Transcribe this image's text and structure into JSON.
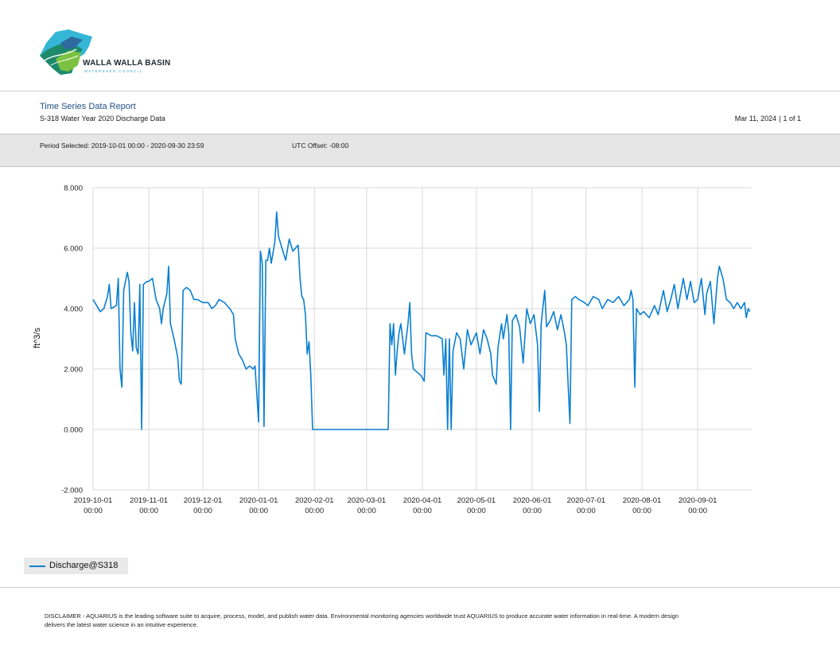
{
  "header": {
    "logo_text": "WALLA WALLA BASIN",
    "logo_subtext": "WATERSHED COUNCIL",
    "report_title": "Time Series Data Report",
    "report_subtitle": "S-318 Water Year 2020 Discharge Data",
    "report_date": "Mar 11, 2024",
    "page_info": "1 of 1"
  },
  "period": {
    "selected": "Period Selected: 2019-10-01 00:00 - 2020-09-30 23:59",
    "utc_offset": "UTC Offset: -08:00"
  },
  "legend": {
    "label": "Discharge@S318",
    "color": "#0a7fd1"
  },
  "disclaimer": "DISCLAIMER - AQUARIUS is the leading software suite to acquire, process, model, and publish water data. Environmental monitoring agencies worldwide trust AQUARIUS to produce accurate water information in real-time. A modern design delivers the latest water science in an intuitive experience.",
  "colors": {
    "series": "#0a7fd1",
    "grid": "#d9d9d9",
    "title": "#1f4f86"
  },
  "chart_data": {
    "type": "line",
    "title": "",
    "xlabel": "",
    "ylabel": "ft^3/s",
    "ylim": [
      -2,
      8
    ],
    "xlim": [
      "2019-10-01",
      "2020-09-30"
    ],
    "yticks": [
      "8.000",
      "6.000",
      "4.000",
      "2.000",
      "0.000",
      "-2.000"
    ],
    "xticks": [
      {
        "date": "2019-10-01",
        "label1": "2019-10-01",
        "label2": "00:00"
      },
      {
        "date": "2019-11-01",
        "label1": "2019-11-01",
        "label2": "00:00"
      },
      {
        "date": "2019-12-01",
        "label1": "2019-12-01",
        "label2": "00:00"
      },
      {
        "date": "2020-01-01",
        "label1": "2020-01-01",
        "label2": "00:00"
      },
      {
        "date": "2020-02-01",
        "label1": "2020-02-01",
        "label2": "00:00"
      },
      {
        "date": "2020-03-01",
        "label1": "2020-03-01",
        "label2": "00:00"
      },
      {
        "date": "2020-04-01",
        "label1": "2020-04-01",
        "label2": "00:00"
      },
      {
        "date": "2020-05-01",
        "label1": "2020-05-01",
        "label2": "00:00"
      },
      {
        "date": "2020-06-01",
        "label1": "2020-06-01",
        "label2": "00:00"
      },
      {
        "date": "2020-07-01",
        "label1": "2020-07-01",
        "label2": "00:00"
      },
      {
        "date": "2020-08-01",
        "label1": "2020-08-01",
        "label2": "00:00"
      },
      {
        "date": "2020-09-01",
        "label1": "2020-09-01",
        "label2": "00:00"
      }
    ],
    "grid": true,
    "legend_position": "bottom-left",
    "series": [
      {
        "name": "Discharge@S318",
        "color": "#0a7fd1",
        "points": [
          [
            "2019-10-01",
            4.3
          ],
          [
            "2019-10-03",
            4.1
          ],
          [
            "2019-10-05",
            3.9
          ],
          [
            "2019-10-07",
            4.0
          ],
          [
            "2019-10-09",
            4.4
          ],
          [
            "2019-10-10",
            4.8
          ],
          [
            "2019-10-11",
            4.0
          ],
          [
            "2019-10-14",
            4.1
          ],
          [
            "2019-10-15",
            5.0
          ],
          [
            "2019-10-16",
            2.0
          ],
          [
            "2019-10-17",
            1.4
          ],
          [
            "2019-10-18",
            4.6
          ],
          [
            "2019-10-20",
            5.2
          ],
          [
            "2019-10-21",
            4.9
          ],
          [
            "2019-10-22",
            3.2
          ],
          [
            "2019-10-23",
            2.6
          ],
          [
            "2019-10-24",
            4.2
          ],
          [
            "2019-10-25",
            2.7
          ],
          [
            "2019-10-26",
            2.5
          ],
          [
            "2019-10-27",
            4.8
          ],
          [
            "2019-10-28",
            0.0
          ],
          [
            "2019-10-29",
            4.8
          ],
          [
            "2019-10-31",
            4.9
          ],
          [
            "2019-11-01",
            4.9
          ],
          [
            "2019-11-03",
            5.0
          ],
          [
            "2019-11-05",
            4.3
          ],
          [
            "2019-11-07",
            4.0
          ],
          [
            "2019-11-08",
            3.5
          ],
          [
            "2019-11-09",
            4.0
          ],
          [
            "2019-11-11",
            4.5
          ],
          [
            "2019-11-12",
            5.4
          ],
          [
            "2019-11-13",
            3.5
          ],
          [
            "2019-11-15",
            3.0
          ],
          [
            "2019-11-17",
            2.4
          ],
          [
            "2019-11-18",
            1.6
          ],
          [
            "2019-11-19",
            1.5
          ],
          [
            "2019-11-20",
            4.6
          ],
          [
            "2019-11-22",
            4.7
          ],
          [
            "2019-11-24",
            4.6
          ],
          [
            "2019-11-26",
            4.3
          ],
          [
            "2019-11-28",
            4.3
          ],
          [
            "2019-12-01",
            4.2
          ],
          [
            "2019-12-04",
            4.2
          ],
          [
            "2019-12-06",
            4.0
          ],
          [
            "2019-12-08",
            4.1
          ],
          [
            "2019-12-10",
            4.3
          ],
          [
            "2019-12-13",
            4.2
          ],
          [
            "2019-12-16",
            4.0
          ],
          [
            "2019-12-18",
            3.8
          ],
          [
            "2019-12-19",
            3.0
          ],
          [
            "2019-12-21",
            2.5
          ],
          [
            "2019-12-23",
            2.3
          ],
          [
            "2019-12-25",
            2.0
          ],
          [
            "2019-12-27",
            2.1
          ],
          [
            "2019-12-29",
            2.0
          ],
          [
            "2019-12-30",
            2.1
          ],
          [
            "2020-01-01",
            0.25
          ],
          [
            "2020-01-02",
            5.9
          ],
          [
            "2020-01-03",
            5.5
          ],
          [
            "2020-01-04",
            0.1
          ],
          [
            "2020-01-05",
            5.6
          ],
          [
            "2020-01-06",
            5.6
          ],
          [
            "2020-01-07",
            6.0
          ],
          [
            "2020-01-08",
            5.5
          ],
          [
            "2020-01-10",
            6.2
          ],
          [
            "2020-01-11",
            7.2
          ],
          [
            "2020-01-12",
            6.4
          ],
          [
            "2020-01-14",
            6.0
          ],
          [
            "2020-01-16",
            5.6
          ],
          [
            "2020-01-18",
            6.3
          ],
          [
            "2020-01-20",
            5.9
          ],
          [
            "2020-01-23",
            6.1
          ],
          [
            "2020-01-24",
            5.0
          ],
          [
            "2020-01-25",
            4.4
          ],
          [
            "2020-01-26",
            4.3
          ],
          [
            "2020-01-27",
            3.8
          ],
          [
            "2020-01-28",
            2.5
          ],
          [
            "2020-01-29",
            2.9
          ],
          [
            "2020-01-30",
            1.8
          ],
          [
            "2020-01-31",
            0.0
          ],
          [
            "2020-02-01",
            0.0
          ],
          [
            "2020-02-15",
            0.0
          ],
          [
            "2020-03-01",
            0.0
          ],
          [
            "2020-03-13",
            0.0
          ],
          [
            "2020-03-14",
            3.5
          ],
          [
            "2020-03-15",
            2.8
          ],
          [
            "2020-03-16",
            3.5
          ],
          [
            "2020-03-17",
            1.8
          ],
          [
            "2020-03-18",
            2.6
          ],
          [
            "2020-03-19",
            3.2
          ],
          [
            "2020-03-20",
            3.5
          ],
          [
            "2020-03-22",
            2.5
          ],
          [
            "2020-03-24",
            3.5
          ],
          [
            "2020-03-25",
            4.2
          ],
          [
            "2020-03-26",
            2.5
          ],
          [
            "2020-03-27",
            2.0
          ],
          [
            "2020-03-29",
            1.9
          ],
          [
            "2020-03-31",
            1.8
          ],
          [
            "2020-04-02",
            1.6
          ],
          [
            "2020-04-03",
            3.2
          ],
          [
            "2020-04-06",
            3.1
          ],
          [
            "2020-04-09",
            3.1
          ],
          [
            "2020-04-12",
            3.0
          ],
          [
            "2020-04-13",
            1.8
          ],
          [
            "2020-04-14",
            3.0
          ],
          [
            "2020-04-15",
            0.0
          ],
          [
            "2020-04-16",
            3.0
          ],
          [
            "2020-04-17",
            0.0
          ],
          [
            "2020-04-18",
            2.6
          ],
          [
            "2020-04-20",
            3.2
          ],
          [
            "2020-04-22",
            3.0
          ],
          [
            "2020-04-24",
            2.0
          ],
          [
            "2020-04-26",
            3.3
          ],
          [
            "2020-04-28",
            2.8
          ],
          [
            "2020-05-01",
            3.2
          ],
          [
            "2020-05-03",
            2.5
          ],
          [
            "2020-05-05",
            3.3
          ],
          [
            "2020-05-07",
            3.0
          ],
          [
            "2020-05-09",
            2.5
          ],
          [
            "2020-05-10",
            1.8
          ],
          [
            "2020-05-12",
            1.5
          ],
          [
            "2020-05-13",
            2.7
          ],
          [
            "2020-05-15",
            3.5
          ],
          [
            "2020-05-16",
            3.0
          ],
          [
            "2020-05-18",
            3.8
          ],
          [
            "2020-05-19",
            3.2
          ],
          [
            "2020-05-20",
            0.0
          ],
          [
            "2020-05-21",
            3.6
          ],
          [
            "2020-05-23",
            3.8
          ],
          [
            "2020-05-25",
            3.4
          ],
          [
            "2020-05-27",
            2.2
          ],
          [
            "2020-05-29",
            4.0
          ],
          [
            "2020-05-31",
            3.5
          ],
          [
            "2020-06-02",
            3.8
          ],
          [
            "2020-06-04",
            2.8
          ],
          [
            "2020-06-05",
            0.6
          ],
          [
            "2020-06-06",
            3.5
          ],
          [
            "2020-06-08",
            4.6
          ],
          [
            "2020-06-09",
            3.4
          ],
          [
            "2020-06-11",
            3.6
          ],
          [
            "2020-06-13",
            3.9
          ],
          [
            "2020-06-15",
            3.3
          ],
          [
            "2020-06-17",
            3.8
          ],
          [
            "2020-06-19",
            3.2
          ],
          [
            "2020-06-20",
            2.8
          ],
          [
            "2020-06-21",
            1.5
          ],
          [
            "2020-06-22",
            0.2
          ],
          [
            "2020-06-23",
            4.3
          ],
          [
            "2020-06-25",
            4.4
          ],
          [
            "2020-06-27",
            4.3
          ],
          [
            "2020-06-30",
            4.2
          ],
          [
            "2020-07-02",
            4.1
          ],
          [
            "2020-07-05",
            4.4
          ],
          [
            "2020-07-08",
            4.3
          ],
          [
            "2020-07-10",
            4.0
          ],
          [
            "2020-07-13",
            4.3
          ],
          [
            "2020-07-16",
            4.2
          ],
          [
            "2020-07-19",
            4.4
          ],
          [
            "2020-07-22",
            4.1
          ],
          [
            "2020-07-25",
            4.3
          ],
          [
            "2020-07-26",
            4.6
          ],
          [
            "2020-07-27",
            4.3
          ],
          [
            "2020-07-28",
            1.4
          ],
          [
            "2020-07-29",
            4.0
          ],
          [
            "2020-07-31",
            3.8
          ],
          [
            "2020-08-02",
            3.9
          ],
          [
            "2020-08-05",
            3.7
          ],
          [
            "2020-08-08",
            4.1
          ],
          [
            "2020-08-10",
            3.8
          ],
          [
            "2020-08-13",
            4.6
          ],
          [
            "2020-08-15",
            3.9
          ],
          [
            "2020-08-17",
            4.3
          ],
          [
            "2020-08-19",
            4.8
          ],
          [
            "2020-08-21",
            4.0
          ],
          [
            "2020-08-24",
            5.0
          ],
          [
            "2020-08-26",
            4.3
          ],
          [
            "2020-08-28",
            4.9
          ],
          [
            "2020-08-30",
            4.2
          ],
          [
            "2020-09-01",
            4.3
          ],
          [
            "2020-09-03",
            5.0
          ],
          [
            "2020-09-05",
            3.8
          ],
          [
            "2020-09-06",
            4.5
          ],
          [
            "2020-09-08",
            4.9
          ],
          [
            "2020-09-10",
            3.5
          ],
          [
            "2020-09-12",
            5.0
          ],
          [
            "2020-09-13",
            5.4
          ],
          [
            "2020-09-15",
            5.0
          ],
          [
            "2020-09-17",
            4.3
          ],
          [
            "2020-09-19",
            4.2
          ],
          [
            "2020-09-21",
            4.0
          ],
          [
            "2020-09-23",
            4.2
          ],
          [
            "2020-09-25",
            4.0
          ],
          [
            "2020-09-27",
            4.2
          ],
          [
            "2020-09-28",
            3.7
          ],
          [
            "2020-09-29",
            4.0
          ],
          [
            "2020-09-30",
            3.9
          ]
        ]
      }
    ]
  }
}
